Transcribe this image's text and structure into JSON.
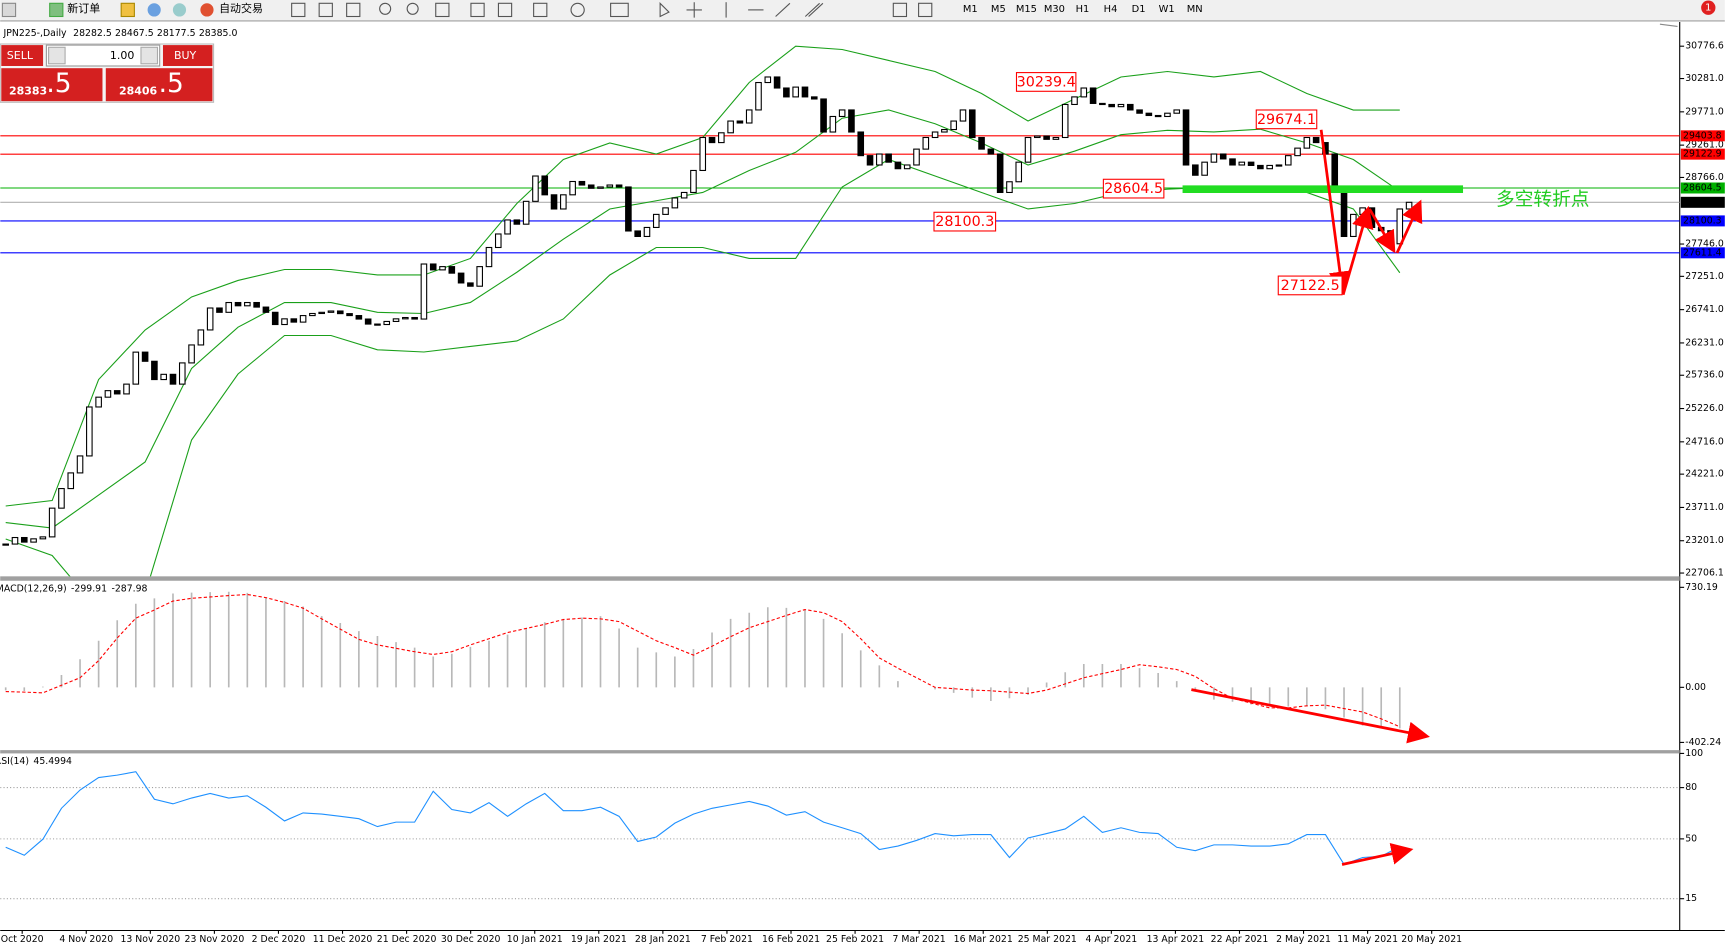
{
  "toolbar": {
    "new_order": "新订单",
    "auto_trading": "自动交易",
    "timeframes": [
      "M1",
      "M5",
      "M15",
      "M30",
      "H1",
      "H4",
      "D1",
      "W1",
      "MN"
    ],
    "notifications": "1"
  },
  "trade_panel": {
    "sell_label": "SELL",
    "buy_label": "BUY",
    "lot": "1.00",
    "bid_main": "28383",
    "bid_pips": ".5",
    "ask_main": "28406",
    "ask_pips": ".5"
  },
  "chart": {
    "type": "candlestick",
    "symbol": "JPN225-,Daily",
    "ohlc": [
      "28282.5",
      "28467.5",
      "28177.5",
      "28385.0"
    ],
    "ylim": [
      22706.1,
      30776.6
    ],
    "yticks": [
      30776.6,
      {
        "value": 30281,
        "label": "30281.0"
      },
      {
        "value": 29771,
        "label": "29771.0"
      },
      {
        "value": 29261,
        "label": "29261.0"
      },
      {
        "value": 28766,
        "label": "28766.0"
      },
      {
        "value": 27746,
        "label": "27746.0"
      },
      {
        "value": 27251,
        "label": "27251.0"
      },
      {
        "value": 26741,
        "label": "26741.0"
      },
      {
        "value": 26231,
        "label": "26231.0"
      },
      {
        "value": 25736,
        "label": "25736.0"
      },
      {
        "value": 25226,
        "label": "25226.0"
      },
      {
        "value": 24716,
        "label": "24716.0"
      },
      {
        "value": 24221,
        "label": "24221.0"
      },
      {
        "value": 23711,
        "label": "23711.0"
      },
      {
        "value": 23201,
        "label": "23201.0"
      },
      22706.1
    ],
    "levels": [
      {
        "value": 29403.8,
        "color": "#ff0000"
      },
      {
        "value": 29122.9,
        "color": "#ff0000"
      },
      {
        "value": 28604.5,
        "color": "#00b000"
      },
      {
        "value": 28385,
        "label": "28385.0",
        "color": "#000000"
      },
      {
        "value": 28100.3,
        "color": "#0000ff"
      },
      {
        "value": 27611.4,
        "color": "#0000ff"
      }
    ],
    "closes": [
      23150,
      23250,
      23180,
      23230,
      23260,
      23700,
      24000,
      24240,
      24500,
      25250,
      25400,
      25500,
      25450,
      25600,
      26090,
      25950,
      25670,
      25750,
      25600,
      25925,
      26200,
      26430,
      26766,
      26700,
      26850,
      26800,
      26850,
      26780,
      26700,
      26513,
      26600,
      26550,
      26650,
      26682,
      26700,
      26720,
      26680,
      26650,
      26597,
      26520,
      26513,
      26560,
      26600,
      26620,
      26597,
      27440,
      27350,
      27400,
      27300,
      27150,
      27100,
      27400,
      27693,
      27900,
      28115,
      28050,
      28400,
      28788,
      28500,
      28283,
      28500,
      28704,
      28650,
      28600,
      28620,
      28650,
      28620,
      27946,
      27862,
      28000,
      28200,
      28300,
      28452,
      28536,
      28873,
      29378,
      29300,
      29450,
      29630,
      29600,
      29800,
      30220,
      30305,
      30136,
      30000,
      30150,
      30000,
      29968,
      29462,
      29700,
      29800,
      29462,
      29100,
      28957,
      29125,
      29000,
      28900,
      28957,
      29200,
      29378,
      29462,
      29500,
      29630,
      29800,
      29378,
      29200,
      29125,
      28536,
      28700,
      29000,
      29378,
      29400,
      29350,
      29378,
      29884,
      30000,
      30136,
      29900,
      29884,
      29850,
      29884,
      29800,
      29750,
      29715,
      29700,
      29750,
      29800,
      28957,
      28800,
      29000,
      29125,
      29050,
      28957,
      29000,
      28950,
      28900,
      28950,
      28957,
      29100,
      29215,
      29378,
      29300,
      29125,
      28536,
      27862,
      28200,
      28300,
      28000,
      27950,
      27750,
      28283,
      28385
    ],
    "bands": {
      "color": "#1aa01a",
      "x": [
        0,
        5,
        10,
        15,
        20,
        25,
        30,
        35,
        40,
        45,
        50,
        55,
        60,
        65,
        70,
        75,
        80,
        85,
        90,
        95,
        100,
        105,
        110,
        115,
        120,
        125,
        130,
        135,
        140,
        145,
        150
      ],
      "upper": [
        23733,
        23817,
        25671,
        26429,
        26935,
        27188,
        27356,
        27356,
        27272,
        27272,
        27525,
        28367,
        29041,
        29294,
        29125,
        29378,
        30221,
        30777,
        30726,
        30558,
        30389,
        30052,
        29631,
        29968,
        30305,
        30389,
        30305,
        30389,
        30052,
        29799,
        29799
      ],
      "middle": [
        23480,
        23396,
        23900,
        24407,
        25840,
        26472,
        26850,
        26850,
        26700,
        26682,
        26851,
        27314,
        27820,
        28283,
        28409,
        28536,
        28873,
        29151,
        29673,
        29800,
        29589,
        29294,
        28957,
        29168,
        29421,
        29488,
        29463,
        29505,
        29294,
        29041,
        28553
      ],
      "lower": [
        23228,
        22975,
        22132,
        22385,
        24744,
        25755,
        26345,
        26345,
        26126,
        26092,
        26177,
        26261,
        26598,
        27272,
        27693,
        27693,
        27525,
        27525,
        28620,
        29041,
        28788,
        28536,
        28283,
        28367,
        28536,
        28586,
        28620,
        28620,
        28536,
        28283,
        27306
      ]
    },
    "annotations": [
      30239.4,
      29674.1,
      28604.5,
      28100.3,
      27122.5
    ],
    "annotation_text": "多空转折点",
    "ix": [
      0,
      2,
      4,
      6,
      8,
      10,
      12,
      14,
      16,
      18,
      20,
      22,
      24,
      26,
      28,
      30,
      32,
      34,
      36,
      38,
      40,
      42,
      44,
      46,
      48,
      50,
      52,
      54,
      56,
      58,
      60,
      62,
      64,
      66,
      68,
      70,
      72,
      74,
      76,
      78,
      80,
      82,
      84,
      86,
      88,
      90,
      92,
      94,
      96,
      98,
      100,
      102,
      104,
      106,
      108,
      110,
      112,
      114,
      116,
      118,
      120,
      122,
      124,
      126,
      128,
      130,
      132,
      134,
      136,
      138,
      140,
      142,
      144,
      146,
      148,
      150
    ],
    "macd": {
      "label": "MACD(12,26,9)",
      "readout": [
        "-299.91",
        "-287.98"
      ],
      "ylim": [
        -402.24,
        730.19
      ],
      "yticks": [
        730.19,
        {
          "value": 0,
          "label": "0.00"
        },
        -402.24
      ],
      "values": [
        -22,
        -27,
        5,
        90,
        205,
        340,
        490,
        610,
        650,
        685,
        692,
        695,
        698,
        690,
        655,
        630,
        590,
        520,
        470,
        410,
        375,
        330,
        290,
        225,
        245,
        295,
        340,
        385,
        430,
        475,
        500,
        510,
        520,
        430,
        290,
        255,
        225,
        280,
        400,
        500,
        545,
        585,
        580,
        565,
        500,
        395,
        270,
        160,
        45,
        0,
        -15,
        -40,
        -75,
        -100,
        -80,
        -55,
        35,
        110,
        170,
        170,
        170,
        140,
        105,
        45,
        -30,
        -90,
        -105,
        -125,
        -140,
        -140,
        -140,
        -160,
        -220,
        -280,
        -300,
        -300
      ],
      "signal": [
        -31,
        -35,
        -40,
        15,
        70,
        195,
        360,
        505,
        565,
        630,
        650,
        660,
        670,
        678,
        655,
        620,
        578,
        500,
        425,
        350,
        310,
        285,
        260,
        240,
        260,
        310,
        355,
        400,
        430,
        460,
        495,
        505,
        500,
        480,
        410,
        340,
        290,
        235,
        300,
        370,
        435,
        480,
        525,
        568,
        545,
        480,
        355,
        215,
        140,
        70,
        0,
        -10,
        -20,
        -25,
        -35,
        -45,
        -20,
        25,
        70,
        100,
        130,
        165,
        150,
        130,
        80,
        -10,
        -80,
        -115,
        -150,
        -150,
        -135,
        -130,
        -155,
        -180,
        -230,
        -288
      ]
    },
    "rsi": {
      "label": "RSI(14)",
      "readout": "45.4994",
      "ylim": [
        0,
        100
      ],
      "yticks": [
        100,
        80,
        50,
        15
      ],
      "color": "#1e90ff",
      "values": [
        45.1,
        40.4,
        49.8,
        67.9,
        78.6,
        85.9,
        87.3,
        89.3,
        73.2,
        70.5,
        73.9,
        76.6,
        73.9,
        75.2,
        68.5,
        60.5,
        65.2,
        64.5,
        63.2,
        61.8,
        57.2,
        59.8,
        59.8,
        77.9,
        67.2,
        65.2,
        71.2,
        63.2,
        70.5,
        76.6,
        66.5,
        66.5,
        68.5,
        63.2,
        48.5,
        51.1,
        59.2,
        64.5,
        67.9,
        69.9,
        71.9,
        69.2,
        63.9,
        65.9,
        59.8,
        56.5,
        53.1,
        43.8,
        45.8,
        49.1,
        53.1,
        51.8,
        52.5,
        52.5,
        39.1,
        50.5,
        53.1,
        55.8,
        63.2,
        53.8,
        56.5,
        53.8,
        53.1,
        45.1,
        43.1,
        46.5,
        46.5,
        45.8,
        45.8,
        47.1,
        52.5,
        52.5,
        35.1,
        39.1,
        39.8,
        45.5
      ]
    },
    "date_labels": [
      "Oct 2020",
      "4 Nov 2020",
      "13 Nov 2020",
      "23 Nov 2020",
      "2 Dec 2020",
      "11 Dec 2020",
      "21 Dec 2020",
      "30 Dec 2020",
      "10 Jan 2021",
      "19 Jan 2021",
      "28 Jan 2021",
      "7 Feb 2021",
      "16 Feb 2021",
      "25 Feb 2021",
      "7 Mar 2021",
      "16 Mar 2021",
      "25 Mar 2021",
      "4 Apr 2021",
      "13 Apr 2021",
      "22 Apr 2021",
      "2 May 2021",
      "11 May 2021",
      "20 May 2021"
    ]
  }
}
